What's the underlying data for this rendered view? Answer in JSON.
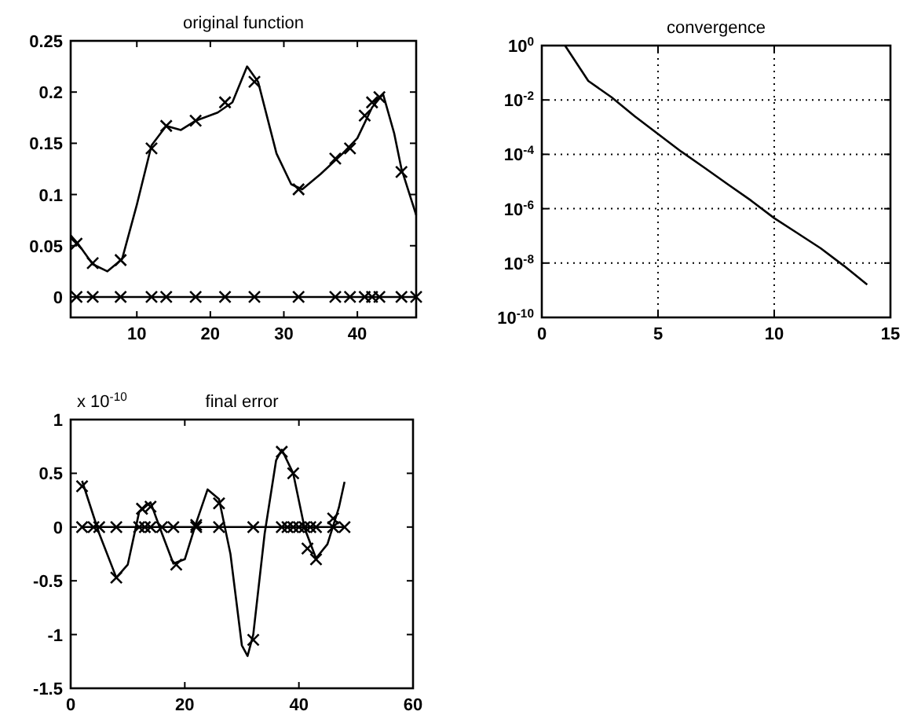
{
  "chart_data": [
    {
      "type": "line",
      "title": "original function",
      "xlim": [
        1,
        48
      ],
      "xticks": [
        10,
        20,
        30,
        40
      ],
      "ylim": [
        -0.02,
        0.25
      ],
      "yticks": [
        0,
        0.05,
        0.1,
        0.15,
        0.2,
        0.25
      ],
      "grid": false,
      "series": [
        {
          "type": "line",
          "color": "#000000",
          "marker": "none",
          "x": [
            1,
            2,
            4,
            6,
            8,
            10,
            12,
            14,
            16,
            18,
            21,
            23,
            25,
            26.5,
            29,
            31,
            32.5,
            35,
            38,
            40,
            42,
            43.5,
            45,
            46,
            48
          ],
          "values": [
            0.06,
            0.052,
            0.032,
            0.025,
            0.037,
            0.09,
            0.148,
            0.167,
            0.163,
            0.172,
            0.18,
            0.19,
            0.225,
            0.21,
            0.14,
            0.11,
            0.105,
            0.12,
            0.14,
            0.155,
            0.185,
            0.198,
            0.16,
            0.125,
            0.08
          ]
        },
        {
          "type": "scatter",
          "color": "#000000",
          "marker": "cross",
          "x": [
            1.8,
            4,
            7.8,
            12,
            14,
            18,
            22,
            26,
            32,
            37,
            39,
            41,
            42,
            43,
            46
          ],
          "values": [
            0.052,
            0.033,
            0.036,
            0.145,
            0.167,
            0.172,
            0.19,
            0.21,
            0.105,
            0.135,
            0.145,
            0.177,
            0.19,
            0.195,
            0.122
          ]
        },
        {
          "type": "line",
          "color": "#000000",
          "marker": "cross",
          "x": [
            1.8,
            4,
            7.8,
            12,
            14,
            18,
            22,
            26,
            32,
            37,
            39,
            41,
            42,
            43,
            46,
            48
          ],
          "values": [
            0,
            0,
            0,
            0,
            0,
            0,
            0,
            0,
            0,
            0,
            0,
            0,
            0,
            0,
            0,
            0
          ]
        }
      ]
    },
    {
      "type": "line",
      "title": "convergence",
      "xlim": [
        0,
        15
      ],
      "xticks": [
        0,
        5,
        10,
        15
      ],
      "ylim": [
        1e-10,
        1
      ],
      "log": true,
      "grid": true,
      "yticks": [
        {
          "value": 1,
          "label": "10$^{0}$"
        },
        {
          "value": 0.01,
          "label": "10$^{-2}$"
        },
        {
          "value": 0.0001,
          "label": "10$^{-4}$"
        },
        {
          "value": 1e-06,
          "label": "10$^{-6}$"
        },
        {
          "value": 1e-08,
          "label": "10$^{-8}$"
        },
        {
          "value": 1e-10,
          "label": "10$^{-10}$"
        }
      ],
      "series": [
        {
          "type": "line",
          "color": "#000000",
          "marker": "none",
          "x": [
            1,
            2,
            3,
            4,
            5,
            6,
            7,
            8,
            9,
            10,
            11,
            12,
            13,
            14
          ],
          "values": [
            1,
            0.05,
            0.0126,
            0.0025,
            0.00056,
            0.000126,
            3.2e-05,
            7.9e-06,
            2e-06,
            4.5e-07,
            1.26e-07,
            3.5e-08,
            7.9e-09,
            1.6e-09
          ]
        }
      ]
    },
    {
      "type": "line",
      "title": "final error",
      "annotations": [
        "x 10$^{-10}$"
      ],
      "xlim": [
        0,
        60
      ],
      "xticks": [
        0,
        20,
        40,
        60
      ],
      "ylim": [
        -1.5,
        1
      ],
      "yticks": [
        -1.5,
        -1,
        -0.5,
        0,
        0.5,
        1
      ],
      "grid": false,
      "series": [
        {
          "type": "line",
          "color": "#000000",
          "marker": "none",
          "x": [
            2,
            5,
            8,
            10,
            12,
            14,
            16,
            18,
            20,
            22,
            24,
            26,
            28,
            30,
            31,
            32,
            34,
            36,
            37,
            39,
            41,
            43,
            45,
            47,
            48
          ],
          "values": [
            0.43,
            -0.06,
            -0.47,
            -0.35,
            0.14,
            0.23,
            -0.06,
            -0.34,
            -0.3,
            0.04,
            0.35,
            0.26,
            -0.25,
            -1.1,
            -1.2,
            -1,
            -0.06,
            0.62,
            0.72,
            0.5,
            -0.01,
            -0.29,
            -0.16,
            0.18,
            0.42
          ]
        },
        {
          "type": "scatter",
          "color": "#000000",
          "marker": "cross",
          "x": [
            2,
            8,
            12.5,
            14,
            18.5,
            22,
            26,
            32,
            37,
            39,
            41.5,
            43,
            46
          ],
          "values": [
            0.38,
            -0.47,
            0.17,
            0.19,
            -0.35,
            0.02,
            0.22,
            -1.05,
            0.7,
            0.5,
            -0.2,
            -0.3,
            0.08
          ]
        },
        {
          "type": "line",
          "color": "#000000",
          "marker": "cross",
          "x": [
            2,
            4,
            5,
            8,
            12,
            13,
            14,
            16,
            18,
            22,
            26,
            32,
            37,
            38,
            39,
            40,
            41,
            42,
            43,
            46,
            48
          ],
          "values": [
            0,
            0,
            0,
            0,
            0,
            0,
            0,
            0,
            0,
            0,
            0,
            0,
            0,
            0,
            0,
            0,
            0,
            0,
            0,
            0,
            0
          ]
        }
      ]
    }
  ]
}
